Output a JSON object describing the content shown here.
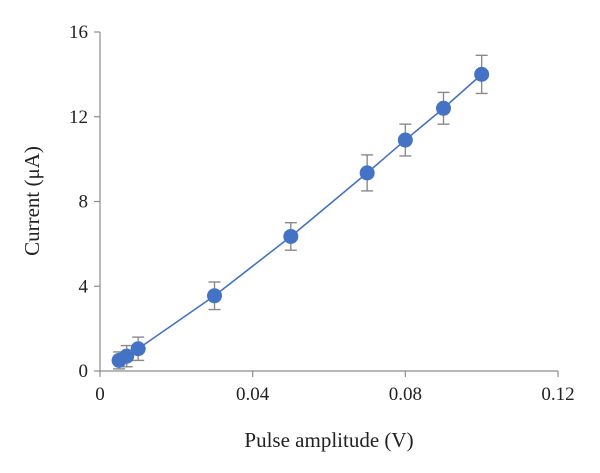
{
  "chart_data": {
    "type": "scatter",
    "title": "",
    "xlabel": "Pulse amplitude (V)",
    "ylabel": "Current (μA)",
    "xlim": [
      0,
      0.12
    ],
    "ylim": [
      0,
      16
    ],
    "x_ticks": [
      0,
      0.04,
      0.08,
      0.12
    ],
    "x_tick_labels": [
      "0",
      "0.04",
      "0.08",
      "0.12"
    ],
    "y_ticks": [
      0,
      4,
      8,
      12,
      16
    ],
    "y_tick_labels": [
      "0",
      "4",
      "8",
      "12",
      "16"
    ],
    "grid": false,
    "legend": "none",
    "series": [
      {
        "color": "#4472c4",
        "error_color": "#8a8a8a",
        "connected": true,
        "points": [
          {
            "x": 0.005,
            "y": 0.5,
            "err": 0.4
          },
          {
            "x": 0.007,
            "y": 0.7,
            "err": 0.5
          },
          {
            "x": 0.01,
            "y": 1.05,
            "err": 0.55
          },
          {
            "x": 0.03,
            "y": 3.55,
            "err": 0.65
          },
          {
            "x": 0.05,
            "y": 6.35,
            "err": 0.65
          },
          {
            "x": 0.07,
            "y": 9.35,
            "err": 0.85
          },
          {
            "x": 0.08,
            "y": 10.9,
            "err": 0.75
          },
          {
            "x": 0.09,
            "y": 12.4,
            "err": 0.75
          },
          {
            "x": 0.1,
            "y": 14.0,
            "err": 0.9
          }
        ]
      }
    ]
  }
}
